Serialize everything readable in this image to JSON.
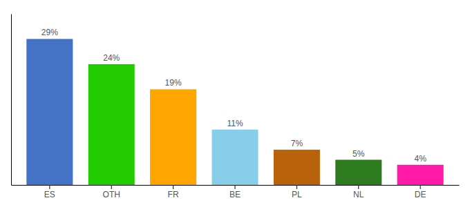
{
  "chart_data": {
    "type": "bar",
    "categories": [
      "ES",
      "OTH",
      "FR",
      "BE",
      "PL",
      "NL",
      "DE"
    ],
    "values": [
      29,
      24,
      19,
      11,
      7,
      5,
      4
    ],
    "value_labels": [
      "29%",
      "24%",
      "19%",
      "11%",
      "7%",
      "5%",
      "4%"
    ],
    "colors": [
      "#4472c4",
      "#22cc00",
      "#ffa500",
      "#87ceeb",
      "#b8620a",
      "#2d7a1f",
      "#ff1aaa"
    ],
    "ylim": [
      0,
      34
    ],
    "grid": false,
    "data_labels": true,
    "tick_labels": "x"
  }
}
